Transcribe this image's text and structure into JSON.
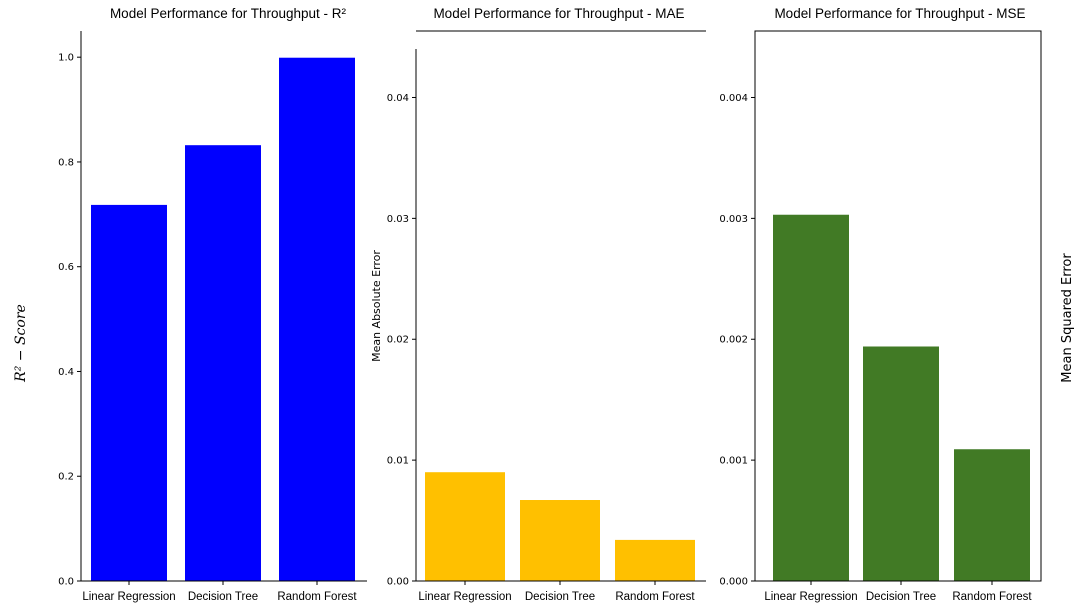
{
  "chart_data": [
    {
      "type": "bar",
      "title": "Model Performance for Throughput - R²",
      "ylabel": "R² − Score",
      "categories": [
        "Linear Regression",
        "Decision Tree",
        "Random Forest"
      ],
      "values": [
        0.718,
        0.832,
        0.999
      ],
      "ylim": [
        0,
        1.05
      ],
      "yticks": [
        "0.0",
        "0.2",
        "0.4",
        "0.6",
        "0.8",
        "1.0"
      ],
      "color": "#0000ff"
    },
    {
      "type": "bar",
      "title": "Model Performance for Throughput - MAE",
      "ylabel": "Mean Absolute Error",
      "categories": [
        "Linear Regression",
        "Decision Tree",
        "Random Forest"
      ],
      "values": [
        0.009,
        0.0067,
        0.0034
      ],
      "ylim": [
        0,
        0.0455
      ],
      "yticks": [
        "0.00",
        "0.01",
        "0.02",
        "0.03",
        "0.04"
      ],
      "color": "#ffc000"
    },
    {
      "type": "bar",
      "title": "Model Performance for Throughput - MSE",
      "ylabel": "Mean Squared Error",
      "categories": [
        "Linear Regression",
        "Decision Tree",
        "Random Forest"
      ],
      "values": [
        0.00303,
        0.00194,
        0.00109
      ],
      "ylim": [
        0,
        0.00455
      ],
      "yticks": [
        "0.000",
        "0.001",
        "0.002",
        "0.003",
        "0.004"
      ],
      "color": "#417a25"
    }
  ]
}
